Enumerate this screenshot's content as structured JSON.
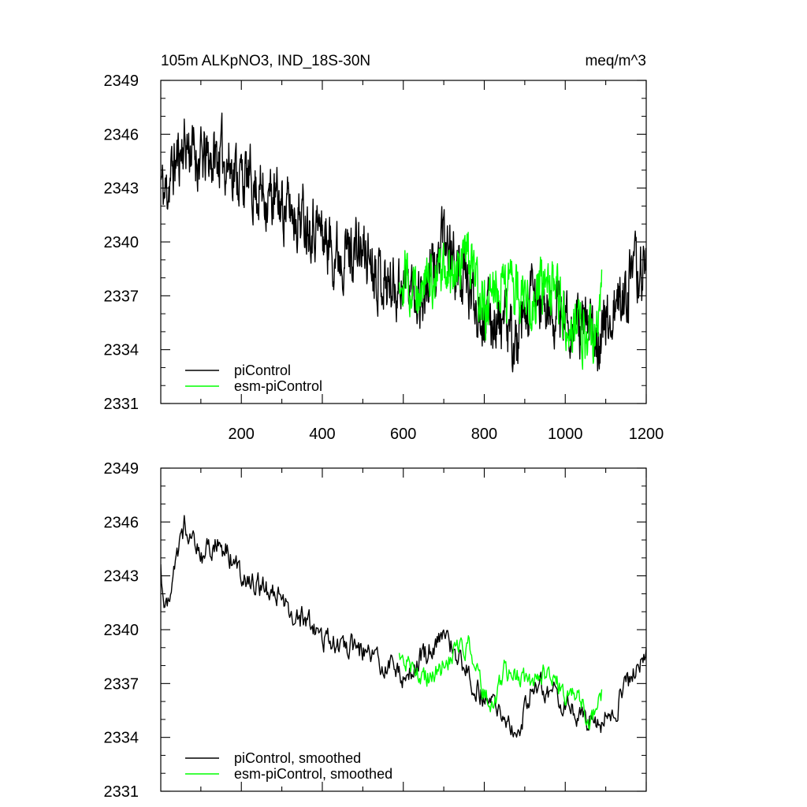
{
  "chart_data": [
    {
      "type": "line",
      "title": "105m ALKpNO3, IND_18S-30N",
      "units": "meq/m^3",
      "xlabel": "",
      "ylabel": "",
      "xlim": [
        1,
        1200
      ],
      "ylim": [
        2331,
        2349
      ],
      "x_ticks": [
        200,
        400,
        600,
        800,
        1000,
        1200
      ],
      "x_tick_labels": [
        "200",
        "400",
        "600",
        "800",
        "1000",
        "1200"
      ],
      "y_ticks": [
        2331,
        2334,
        2337,
        2340,
        2343,
        2346,
        2349
      ],
      "y_tick_labels": [
        "2331",
        "2334",
        "2337",
        "2340",
        "2343",
        "2346",
        "2349"
      ],
      "grid": false,
      "legend_position": "bottom-left",
      "series": [
        {
          "name": "piControl",
          "color": "#000000",
          "x_start": 1,
          "x_end": 1200,
          "n": 1200,
          "noise": 1.4,
          "seed": 11,
          "trend_x": [
            1,
            10,
            30,
            60,
            100,
            150,
            200,
            260,
            320,
            380,
            430,
            480,
            520,
            560,
            600,
            650,
            700,
            750,
            800,
            850,
            880,
            920,
            960,
            1000,
            1040,
            1080,
            1120,
            1160,
            1200
          ],
          "trend_y": [
            2343.5,
            2342.5,
            2344.0,
            2345.6,
            2344.5,
            2344.8,
            2343.7,
            2342.6,
            2341.8,
            2341.2,
            2339.5,
            2339.6,
            2339.2,
            2337.6,
            2337.8,
            2337.0,
            2340.0,
            2337.8,
            2336.0,
            2335.5,
            2334.0,
            2337.0,
            2336.0,
            2336.0,
            2335.2,
            2334.8,
            2336.0,
            2337.8,
            2338.8
          ]
        },
        {
          "name": "esm-piControl",
          "color": "#00ff00",
          "x_start": 590,
          "x_end": 1090,
          "n": 500,
          "noise": 1.3,
          "seed": 29,
          "trend_x": [
            590,
            630,
            680,
            720,
            760,
            800,
            840,
            880,
            920,
            960,
            1000,
            1040,
            1070,
            1090
          ],
          "trend_y": [
            2338.5,
            2337.5,
            2338.0,
            2338.5,
            2339.0,
            2336.0,
            2338.2,
            2337.0,
            2337.0,
            2337.5,
            2336.0,
            2335.0,
            2334.5,
            2337.5
          ]
        }
      ]
    },
    {
      "type": "line",
      "title": "",
      "units": "",
      "xlabel": "",
      "ylabel": "",
      "xlim": [
        1,
        1200
      ],
      "ylim": [
        2331,
        2349
      ],
      "x_ticks": [
        200,
        400,
        600,
        800,
        1000,
        1200
      ],
      "y_ticks": [
        2331,
        2334,
        2337,
        2340,
        2343,
        2346,
        2349
      ],
      "y_tick_labels": [
        "2331",
        "2334",
        "2337",
        "2340",
        "2343",
        "2346",
        "2349"
      ],
      "grid": false,
      "legend_position": "bottom-left",
      "series": [
        {
          "name": "piControl, smoothed",
          "color": "#000000",
          "x_start": 1,
          "x_end": 1200,
          "n": 600,
          "noise": 0.55,
          "seed": 47,
          "trend_x": [
            1,
            10,
            20,
            40,
            60,
            80,
            100,
            130,
            160,
            200,
            240,
            280,
            320,
            360,
            400,
            440,
            480,
            520,
            560,
            600,
            650,
            700,
            740,
            780,
            820,
            860,
            880,
            920,
            960,
            1000,
            1040,
            1080,
            1120,
            1160,
            1200
          ],
          "trend_y": [
            2343.5,
            2341.0,
            2342.0,
            2344.0,
            2345.8,
            2345.5,
            2344.0,
            2344.8,
            2344.5,
            2343.2,
            2342.5,
            2342.0,
            2341.0,
            2340.5,
            2339.5,
            2339.3,
            2339.0,
            2338.6,
            2338.0,
            2337.5,
            2338.5,
            2340.0,
            2338.2,
            2336.8,
            2336.0,
            2334.5,
            2334.0,
            2337.2,
            2336.5,
            2336.0,
            2335.2,
            2334.8,
            2335.5,
            2337.2,
            2338.5
          ]
        },
        {
          "name": "esm-piControl, smoothed",
          "color": "#00ff00",
          "x_start": 590,
          "x_end": 1090,
          "n": 250,
          "noise": 0.5,
          "seed": 83,
          "trend_x": [
            590,
            620,
            650,
            680,
            720,
            760,
            790,
            820,
            850,
            880,
            920,
            960,
            1000,
            1030,
            1060,
            1090
          ],
          "trend_y": [
            2338.5,
            2338.0,
            2337.2,
            2337.5,
            2338.5,
            2339.2,
            2337.0,
            2335.5,
            2337.8,
            2337.3,
            2337.2,
            2337.8,
            2336.2,
            2336.6,
            2334.5,
            2336.5
          ]
        }
      ]
    }
  ]
}
